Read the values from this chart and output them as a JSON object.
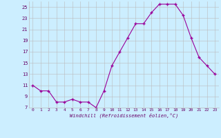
{
  "hours": [
    0,
    1,
    2,
    3,
    4,
    5,
    6,
    7,
    8,
    9,
    10,
    11,
    12,
    13,
    14,
    15,
    16,
    17,
    18,
    19,
    20,
    21,
    22,
    23
  ],
  "values": [
    11,
    10,
    10,
    8,
    8,
    8.5,
    8,
    8,
    7,
    10,
    14.5,
    17,
    19.5,
    22,
    22,
    24,
    25.5,
    25.5,
    25.5,
    23.5,
    19.5,
    16,
    14.5,
    13
  ],
  "line_color": "#990099",
  "marker_color": "#990099",
  "bg_color": "#cceeff",
  "grid_color": "#bbbbbb",
  "xlabel": "Windchill (Refroidissement éolien,°C)",
  "ylim": [
    7,
    26
  ],
  "xlim_left": -0.5,
  "xlim_right": 23.5,
  "yticks": [
    7,
    9,
    11,
    13,
    15,
    17,
    19,
    21,
    23,
    25
  ],
  "xticks": [
    0,
    1,
    2,
    3,
    4,
    5,
    6,
    7,
    8,
    9,
    10,
    11,
    12,
    13,
    14,
    15,
    16,
    17,
    18,
    19,
    20,
    21,
    22,
    23
  ],
  "tick_color": "#660066",
  "axis_label_color": "#660066"
}
